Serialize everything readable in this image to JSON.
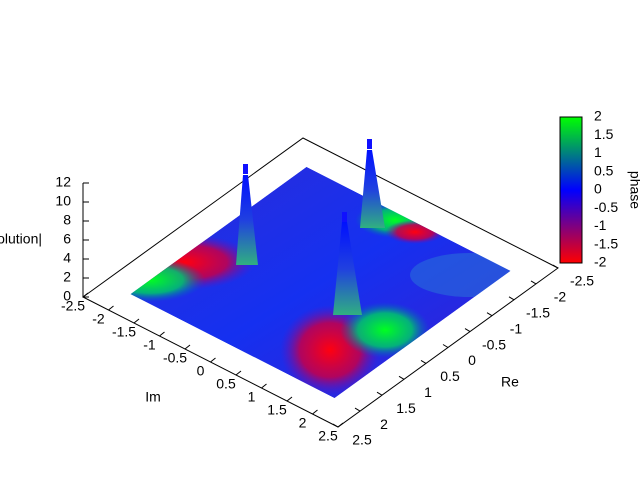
{
  "chart_data": {
    "type": "surface3d",
    "xlabel": "Re",
    "ylabel": "Im",
    "zlabel": "|solution|",
    "colorbar_label": "phase",
    "xlim": [
      -2.5,
      2.5
    ],
    "xticks": [
      -2.5,
      -2,
      -1.5,
      -1,
      -0.5,
      0,
      0.5,
      1,
      1.5,
      2,
      2.5
    ],
    "ylim": [
      -2.5,
      2.5
    ],
    "yticks": [
      -2.5,
      -2,
      -1.5,
      -1,
      -0.5,
      0,
      0.5,
      1,
      1.5,
      2,
      2.5
    ],
    "zlim": [
      0,
      12
    ],
    "zticks": [
      0,
      2,
      4,
      6,
      8,
      10,
      12
    ],
    "cblim": [
      -2,
      2
    ],
    "cbticks": [
      -2,
      -1.5,
      -1,
      -0.5,
      0,
      0.5,
      1,
      1.5,
      2
    ],
    "cb_colors": [
      "#ff0000",
      "#0000ff",
      "#00ff00"
    ]
  }
}
